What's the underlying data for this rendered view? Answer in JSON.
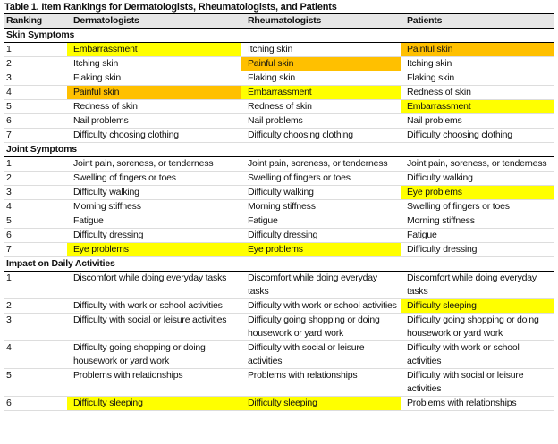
{
  "title": "Table 1. Item Rankings for Dermatologists, Rheumatologists, and Patients",
  "headers": [
    "Ranking",
    "Dermatologists",
    "Rheumatologists",
    "Patients"
  ],
  "colors": {
    "yellow": "#ffff00",
    "orange": "#ffc000"
  },
  "sections": [
    {
      "name": "Skin Symptoms",
      "rows": [
        {
          "rank": "1",
          "cells": [
            {
              "text": "Embarrassment",
              "hl": "yellow"
            },
            {
              "text": "Itching skin"
            },
            {
              "text": "Painful skin",
              "hl": "orange"
            }
          ]
        },
        {
          "rank": "2",
          "cells": [
            {
              "text": "Itching skin"
            },
            {
              "text": "Painful skin",
              "hl": "orange"
            },
            {
              "text": "Itching skin"
            }
          ]
        },
        {
          "rank": "3",
          "cells": [
            {
              "text": "Flaking skin"
            },
            {
              "text": "Flaking skin"
            },
            {
              "text": "Flaking skin"
            }
          ]
        },
        {
          "rank": "4",
          "cells": [
            {
              "text": "Painful skin",
              "hl": "orange"
            },
            {
              "text": "Embarrassment",
              "hl": "yellow"
            },
            {
              "text": "Redness of skin"
            }
          ]
        },
        {
          "rank": "5",
          "cells": [
            {
              "text": "Redness of skin"
            },
            {
              "text": "Redness of skin"
            },
            {
              "text": "Embarrassment",
              "hl": "yellow"
            }
          ]
        },
        {
          "rank": "6",
          "cells": [
            {
              "text": "Nail problems"
            },
            {
              "text": "Nail problems"
            },
            {
              "text": "Nail problems"
            }
          ]
        },
        {
          "rank": "7",
          "cells": [
            {
              "text": "Difficulty choosing clothing"
            },
            {
              "text": "Difficulty choosing clothing"
            },
            {
              "text": "Difficulty choosing clothing"
            }
          ]
        }
      ]
    },
    {
      "name": "Joint Symptoms",
      "rows": [
        {
          "rank": "1",
          "cells": [
            {
              "text": "Joint pain, soreness, or tenderness"
            },
            {
              "text": "Joint pain, soreness, or tenderness"
            },
            {
              "text": "Joint pain, soreness, or tenderness"
            }
          ]
        },
        {
          "rank": "2",
          "cells": [
            {
              "text": "Swelling of fingers or toes"
            },
            {
              "text": "Swelling of fingers or toes"
            },
            {
              "text": "Difficulty walking"
            }
          ]
        },
        {
          "rank": "3",
          "cells": [
            {
              "text": "Difficulty walking"
            },
            {
              "text": "Difficulty walking"
            },
            {
              "text": "Eye problems",
              "hl": "yellow"
            }
          ]
        },
        {
          "rank": "4",
          "cells": [
            {
              "text": "Morning stiffness"
            },
            {
              "text": "Morning stiffness"
            },
            {
              "text": "Swelling of fingers or toes"
            }
          ]
        },
        {
          "rank": "5",
          "cells": [
            {
              "text": "Fatigue"
            },
            {
              "text": "Fatigue"
            },
            {
              "text": "Morning stiffness"
            }
          ]
        },
        {
          "rank": "6",
          "cells": [
            {
              "text": "Difficulty dressing"
            },
            {
              "text": "Difficulty dressing"
            },
            {
              "text": "Fatigue"
            }
          ]
        },
        {
          "rank": "7",
          "cells": [
            {
              "text": "Eye problems",
              "hl": "yellow"
            },
            {
              "text": "Eye problems",
              "hl": "yellow"
            },
            {
              "text": "Difficulty dressing"
            }
          ]
        }
      ]
    },
    {
      "name": "Impact on Daily Activities",
      "rows": [
        {
          "rank": "1",
          "cells": [
            {
              "text": "Discomfort while doing everyday tasks"
            },
            {
              "text": "Discomfort while doing everyday tasks"
            },
            {
              "text": "Discomfort while doing everyday tasks"
            }
          ]
        },
        {
          "rank": "2",
          "cells": [
            {
              "text": "Difficulty with work or school activities"
            },
            {
              "text": "Difficulty with work or school activities"
            },
            {
              "text": "Difficulty sleeping",
              "hl": "yellow"
            }
          ]
        },
        {
          "rank": "3",
          "cells": [
            {
              "text": "Difficulty with social or leisure activities"
            },
            {
              "text": "Difficulty going shopping or doing housework or yard work"
            },
            {
              "text": "Difficulty going shopping or doing housework or yard work"
            }
          ]
        },
        {
          "rank": "4",
          "cells": [
            {
              "text": "Difficulty going shopping or doing housework or yard work"
            },
            {
              "text": "Difficulty with social or leisure activities"
            },
            {
              "text": "Difficulty with work or school activities"
            }
          ]
        },
        {
          "rank": "5",
          "cells": [
            {
              "text": "Problems with relationships"
            },
            {
              "text": "Problems with relationships"
            },
            {
              "text": "Difficulty with social or leisure activities"
            }
          ]
        },
        {
          "rank": "6",
          "cells": [
            {
              "text": "Difficulty sleeping",
              "hl": "yellow"
            },
            {
              "text": "Difficulty sleeping",
              "hl": "yellow"
            },
            {
              "text": "Problems with relationships"
            }
          ]
        }
      ]
    }
  ]
}
